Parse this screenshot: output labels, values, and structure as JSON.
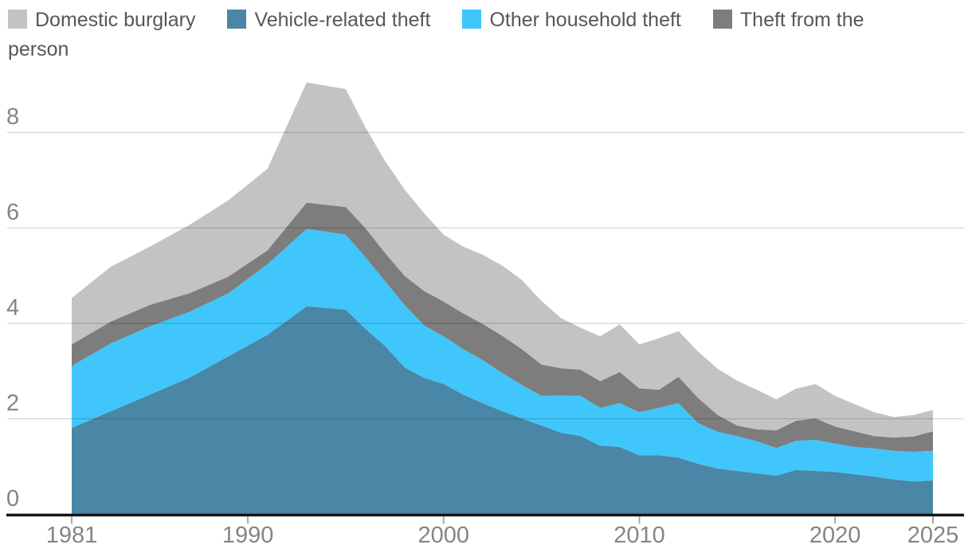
{
  "legend": {
    "items": [
      {
        "id": "burglary",
        "label": "Domestic burglary",
        "color": "#c3c3c3"
      },
      {
        "id": "vehicle",
        "label": "Vehicle-related theft",
        "color": "#4a86a5"
      },
      {
        "id": "other",
        "label": "Other household theft",
        "color": "#40c6fb"
      },
      {
        "id": "person",
        "label": "Theft from the person",
        "color": "#7d7d7d"
      }
    ]
  },
  "chart_data": {
    "type": "area",
    "stacked": true,
    "title": "",
    "xlabel": "",
    "ylabel": "",
    "ylim": [
      0,
      9.2
    ],
    "yticks": [
      0,
      2,
      4,
      6,
      8
    ],
    "xticks": [
      1981,
      1990,
      2000,
      2010,
      2020,
      2025
    ],
    "x_tick_labels": [
      "1981",
      "1990",
      "2000",
      "2010",
      "2020",
      "2025"
    ],
    "y_tick_labels": [
      "0",
      "2",
      "4",
      "6",
      "8"
    ],
    "grid": "horizontal",
    "legend_position": "top",
    "x": [
      1981,
      1983,
      1985,
      1987,
      1989,
      1991,
      1993,
      1995,
      1996,
      1997,
      1998,
      1999,
      2000,
      2001,
      2002,
      2003,
      2004,
      2005,
      2006,
      2007,
      2008,
      2009,
      2010,
      2011,
      2012,
      2013,
      2014,
      2015,
      2016,
      2017,
      2018,
      2019,
      2020,
      2021,
      2022,
      2023,
      2024,
      2025
    ],
    "series": [
      {
        "id": "vehicle",
        "name": "Vehicle-related theft",
        "color": "#4a86a5",
        "values": [
          1.8,
          2.15,
          2.5,
          2.85,
          3.3,
          3.75,
          4.35,
          4.28,
          3.88,
          3.52,
          3.07,
          2.85,
          2.72,
          2.5,
          2.32,
          2.15,
          2.0,
          1.85,
          1.7,
          1.63,
          1.43,
          1.4,
          1.23,
          1.23,
          1.18,
          1.05,
          0.95,
          0.9,
          0.85,
          0.8,
          0.92,
          0.9,
          0.88,
          0.83,
          0.78,
          0.72,
          0.68,
          0.7
        ]
      },
      {
        "id": "other",
        "name": "Other household theft",
        "color": "#40c6fb",
        "values": [
          1.3,
          1.42,
          1.43,
          1.38,
          1.32,
          1.48,
          1.62,
          1.57,
          1.5,
          1.36,
          1.31,
          1.1,
          1.0,
          0.95,
          0.9,
          0.8,
          0.7,
          0.62,
          0.78,
          0.84,
          0.79,
          0.92,
          0.9,
          0.99,
          1.14,
          0.85,
          0.77,
          0.73,
          0.67,
          0.58,
          0.61,
          0.65,
          0.59,
          0.57,
          0.59,
          0.6,
          0.62,
          0.62
        ]
      },
      {
        "id": "person",
        "name": "Theft from the person",
        "color": "#7d7d7d",
        "values": [
          0.45,
          0.46,
          0.45,
          0.39,
          0.35,
          0.29,
          0.55,
          0.58,
          0.61,
          0.59,
          0.61,
          0.72,
          0.73,
          0.75,
          0.76,
          0.78,
          0.75,
          0.66,
          0.57,
          0.55,
          0.56,
          0.65,
          0.5,
          0.38,
          0.55,
          0.53,
          0.35,
          0.22,
          0.25,
          0.37,
          0.42,
          0.45,
          0.36,
          0.33,
          0.26,
          0.28,
          0.32,
          0.41
        ]
      },
      {
        "id": "burglary",
        "name": "Domestic burglary",
        "color": "#c3c3c3",
        "values": [
          0.97,
          1.15,
          1.22,
          1.43,
          1.6,
          1.71,
          2.52,
          2.47,
          2.11,
          1.93,
          1.81,
          1.63,
          1.4,
          1.4,
          1.45,
          1.47,
          1.45,
          1.33,
          1.05,
          0.88,
          0.94,
          1.0,
          0.92,
          1.08,
          0.96,
          0.97,
          0.97,
          0.94,
          0.83,
          0.65,
          0.67,
          0.72,
          0.64,
          0.57,
          0.5,
          0.43,
          0.45,
          0.45
        ]
      }
    ]
  },
  "style": {
    "gridline_color": "rgba(0,0,0,0.16)",
    "axis_color": "#141414",
    "tick_color": "#a9a9a9",
    "tick_label_color": "#858585",
    "legend_text_color": "#575757"
  }
}
